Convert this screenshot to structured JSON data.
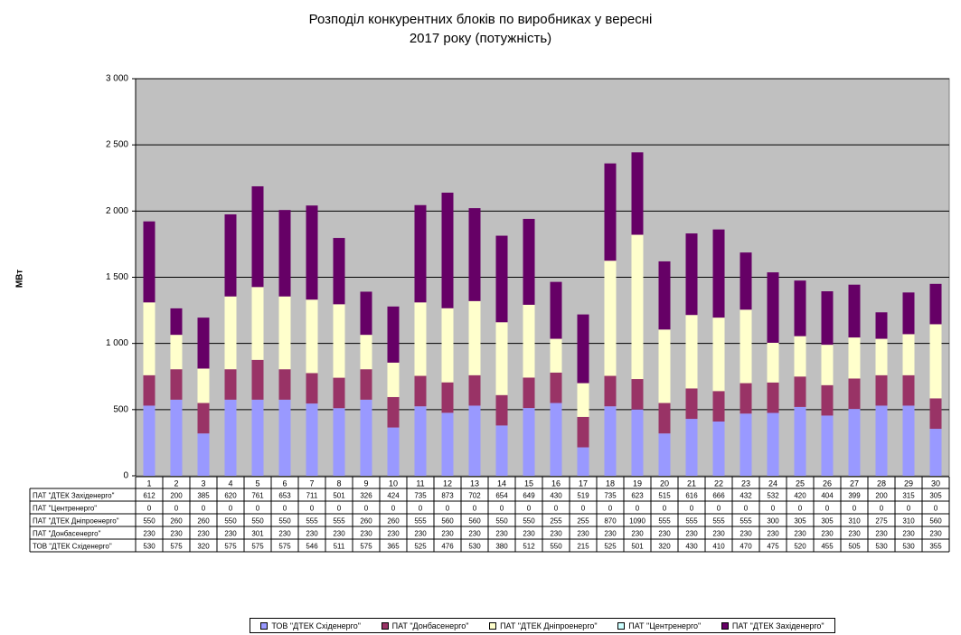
{
  "chart_data": {
    "type": "bar",
    "stacked": true,
    "title_line1": "Розподіл конкурентних блоків по виробниках у вересні",
    "title_line2": "2017 року (потужність)",
    "ylabel": "МВт",
    "ylim": [
      0,
      3000
    ],
    "yticks": [
      0,
      500,
      1000,
      1500,
      2000,
      2500,
      3000
    ],
    "ytick_labels": [
      "0",
      "500",
      "1 000",
      "1 500",
      "2 000",
      "2 500",
      "3 000"
    ],
    "grid": true,
    "plot_background": "#c0c0c0",
    "legend_position": "bottom",
    "categories": [
      "1",
      "2",
      "3",
      "4",
      "5",
      "6",
      "7",
      "8",
      "9",
      "10",
      "11",
      "12",
      "13",
      "14",
      "15",
      "16",
      "17",
      "18",
      "19",
      "20",
      "21",
      "22",
      "23",
      "24",
      "25",
      "26",
      "27",
      "28",
      "29",
      "30"
    ],
    "series": [
      {
        "name": "ТОВ \"ДТЕК Східенерго\"",
        "color": "#9999ff",
        "values": [
          530,
          575,
          320,
          575,
          575,
          575,
          546,
          511,
          575,
          365,
          525,
          476,
          530,
          380,
          512,
          550,
          215,
          525,
          501,
          320,
          430,
          410,
          470,
          475,
          520,
          455,
          505,
          530,
          530,
          355
        ]
      },
      {
        "name": "ПАТ \"Донбасенерго\"",
        "color": "#993366",
        "values": [
          230,
          230,
          230,
          230,
          301,
          230,
          230,
          230,
          230,
          230,
          230,
          230,
          230,
          230,
          230,
          230,
          230,
          230,
          230,
          230,
          230,
          230,
          230,
          230,
          230,
          230,
          230,
          230,
          230,
          230
        ]
      },
      {
        "name": "ПАТ \"ДТЕК Дніпроенерго\"",
        "color": "#ffffcc",
        "values": [
          550,
          260,
          260,
          550,
          550,
          550,
          555,
          555,
          260,
          260,
          555,
          560,
          560,
          550,
          550,
          255,
          255,
          870,
          1090,
          555,
          555,
          555,
          555,
          300,
          305,
          305,
          310,
          275,
          310,
          560
        ]
      },
      {
        "name": "ПАТ \"Центренерго\"",
        "color": "#ccffff",
        "values": [
          0,
          0,
          0,
          0,
          0,
          0,
          0,
          0,
          0,
          0,
          0,
          0,
          0,
          0,
          0,
          0,
          0,
          0,
          0,
          0,
          0,
          0,
          0,
          0,
          0,
          0,
          0,
          0,
          0,
          0
        ]
      },
      {
        "name": "ПАТ \"ДТЕК Західенерго\"",
        "color": "#660066",
        "values": [
          612,
          200,
          385,
          620,
          761,
          653,
          711,
          501,
          326,
          424,
          735,
          873,
          702,
          654,
          649,
          430,
          519,
          735,
          623,
          515,
          616,
          666,
          432,
          532,
          420,
          404,
          399,
          200,
          315,
          305
        ]
      }
    ],
    "table_row_labels": [
      "ПАТ \"ДТЕК  Західенерго\"",
      "ПАТ \"Центренерго\"",
      "ПАТ \"ДТЕК Дніпроенерго\"",
      "ПАТ \"Донбасенерго\"",
      "ТОВ \"ДТЕК Східенерго\""
    ],
    "table_row_series_order": [
      4,
      3,
      2,
      1,
      0
    ],
    "legend_labels": [
      "ТОВ \"ДТЕК Східенерго\"",
      "ПАТ \"Донбасенерго\"",
      "ПАТ \"ДТЕК Дніпроенерго\"",
      "ПАТ \"Центренерго\"",
      "ПАТ \"ДТЕК Західенерго\""
    ]
  }
}
